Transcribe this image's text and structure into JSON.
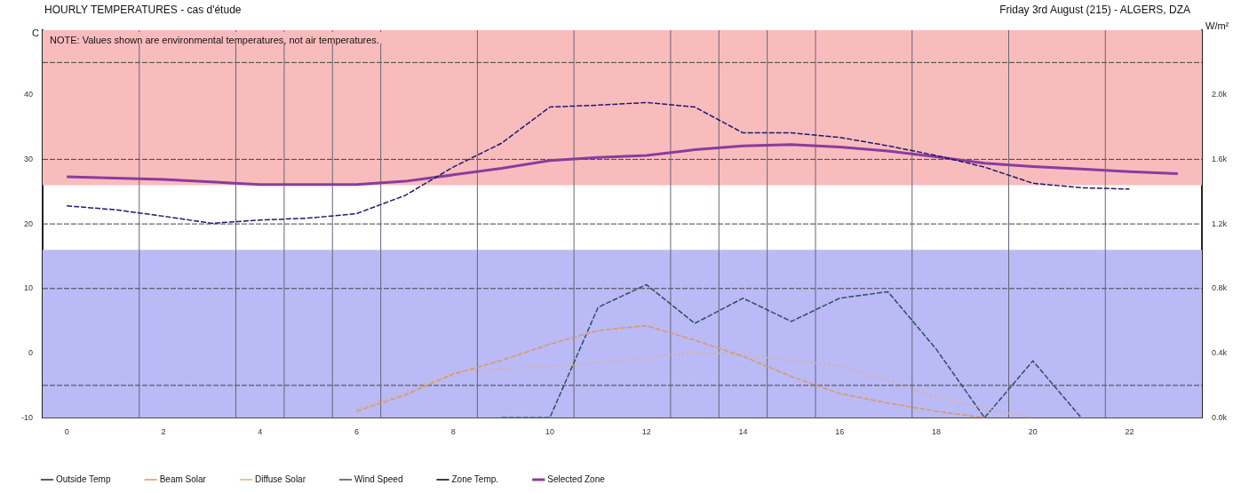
{
  "chart_data": {
    "type": "line",
    "title": "HOURLY TEMPERATURES - cas d'étude",
    "subtitle": "Friday 3rd August (215) - ALGERS, DZA",
    "annotations": [
      "NOTE: Values shown are environmental temperatures, not air temperatures."
    ],
    "ylabel": "C",
    "y2label": "W/m²",
    "x": [
      0,
      1,
      2,
      3,
      4,
      5,
      6,
      7,
      8,
      9,
      10,
      11,
      12,
      13,
      14,
      15,
      16,
      17,
      18,
      19,
      20,
      21,
      22,
      23
    ],
    "xlim": [
      -0.5,
      23.5
    ],
    "xticks": [
      0,
      2,
      4,
      6,
      8,
      10,
      12,
      14,
      16,
      18,
      20,
      22
    ],
    "ylim": [
      -10,
      50
    ],
    "yticks": [
      -10,
      0,
      10,
      20,
      30,
      40
    ],
    "y2lim": [
      0,
      2400
    ],
    "y2ticks": [
      {
        "value": 0,
        "label": "0.0k"
      },
      {
        "value": 400,
        "label": "0.4k"
      },
      {
        "value": 800,
        "label": "0.8k"
      },
      {
        "value": 1200,
        "label": "1.2k"
      },
      {
        "value": 1600,
        "label": "1.6k"
      },
      {
        "value": 2000,
        "label": "2.0k"
      }
    ],
    "grid": false,
    "legend": "bottom",
    "marker": "none",
    "bands": [
      {
        "axis": "y",
        "from": 26,
        "to": 50,
        "color": "#f9bcbd"
      },
      {
        "axis": "y",
        "from": -10,
        "to": 16,
        "color": "#babaf6"
      }
    ],
    "ref_lines": [
      {
        "axis": "y",
        "value": 45,
        "color": "#444444",
        "line_style": "dashed"
      },
      {
        "axis": "y",
        "value": 30,
        "color": "#444444",
        "line_style": "dashed"
      },
      {
        "axis": "y",
        "value": 20,
        "color": "#444444",
        "line_style": "dashed"
      },
      {
        "axis": "y",
        "value": 10,
        "color": "#444444",
        "line_style": "dashed"
      },
      {
        "axis": "y",
        "value": -5,
        "color": "#444444",
        "line_style": "dashed"
      },
      {
        "axis": "x",
        "value": 1.5,
        "color": "#666677",
        "line_style": "solid"
      },
      {
        "axis": "x",
        "value": 3.5,
        "color": "#666677",
        "line_style": "solid"
      },
      {
        "axis": "x",
        "value": 4.5,
        "color": "#666677",
        "line_style": "solid"
      },
      {
        "axis": "x",
        "value": 5.5,
        "color": "#666677",
        "line_style": "solid"
      },
      {
        "axis": "x",
        "value": 6.5,
        "color": "#666677",
        "line_style": "solid"
      },
      {
        "axis": "x",
        "value": 8.5,
        "color": "#666677",
        "line_style": "solid"
      },
      {
        "axis": "x",
        "value": 10.5,
        "color": "#666677",
        "line_style": "solid"
      },
      {
        "axis": "x",
        "value": 12.5,
        "color": "#666677",
        "line_style": "solid"
      },
      {
        "axis": "x",
        "value": 13.5,
        "color": "#666677",
        "line_style": "solid"
      },
      {
        "axis": "x",
        "value": 14.5,
        "color": "#666677",
        "line_style": "solid"
      },
      {
        "axis": "x",
        "value": 15.5,
        "color": "#666677",
        "line_style": "solid"
      },
      {
        "axis": "x",
        "value": 17.5,
        "color": "#666677",
        "line_style": "solid"
      },
      {
        "axis": "x",
        "value": 19.5,
        "color": "#666677",
        "line_style": "solid"
      },
      {
        "axis": "x",
        "value": 21.5,
        "color": "#666677",
        "line_style": "solid"
      }
    ],
    "series": [
      {
        "name": "Outside Temp",
        "color": "#1c1c6e",
        "line_style": "dashed",
        "values": [
          22.8,
          22.2,
          21.2,
          20.1,
          20.6,
          20.9,
          21.6,
          24.4,
          28.8,
          32.5,
          38.1,
          38.4,
          38.8,
          38.1,
          34.1,
          34.1,
          33.4,
          32.1,
          30.6,
          28.8,
          26.3,
          25.6,
          25.4,
          null
        ]
      },
      {
        "name": "Beam Solar",
        "color": "#d89a60",
        "line_style": "dashed",
        "axis": "y2",
        "values": [
          null,
          null,
          null,
          null,
          null,
          null,
          40,
          140,
          270,
          355,
          455,
          540,
          570,
          480,
          380,
          255,
          150,
          90,
          40,
          0,
          null,
          null,
          null,
          null
        ]
      },
      {
        "name": "Diffuse Solar",
        "color": "#e0b080",
        "line_style": "dotted",
        "axis": "y2",
        "values": [
          null,
          null,
          null,
          null,
          null,
          null,
          55,
          155,
          280,
          305,
          320,
          340,
          370,
          405,
          390,
          355,
          320,
          230,
          130,
          55,
          0,
          null,
          null,
          null
        ]
      },
      {
        "name": "Wind Speed",
        "color": "#2f4f5f",
        "line_style": "dashed",
        "values": [
          null,
          null,
          null,
          null,
          null,
          null,
          null,
          null,
          null,
          -10,
          -10,
          7.1,
          10.6,
          4.6,
          8.5,
          4.9,
          8.5,
          9.5,
          0.6,
          -10,
          -1.2,
          -10,
          null,
          null
        ]
      },
      {
        "name": "Zone Temp.",
        "color": "#000000",
        "line_style": "solid",
        "values": [
          null,
          null,
          null,
          null,
          null,
          null,
          null,
          null,
          null,
          null,
          null,
          null,
          null,
          null,
          null,
          null,
          null,
          null,
          null,
          null,
          null,
          null,
          null,
          null
        ]
      },
      {
        "name": "Selected Zone",
        "color": "#8a3c9c",
        "line_style": "solid",
        "values": [
          27.3,
          27.1,
          26.9,
          26.5,
          26.1,
          26.1,
          26.1,
          26.6,
          27.6,
          28.6,
          29.8,
          30.3,
          30.6,
          31.5,
          32.1,
          32.3,
          31.9,
          31.3,
          30.4,
          29.4,
          28.9,
          28.5,
          28.1,
          27.8
        ]
      }
    ]
  }
}
